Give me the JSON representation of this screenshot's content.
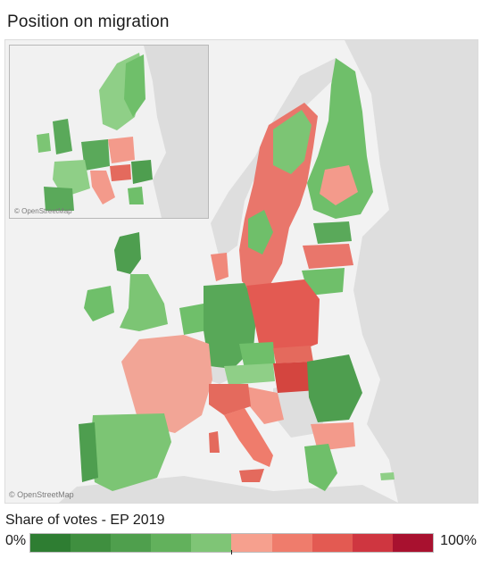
{
  "title": "Position on migration",
  "map": {
    "attribution": "© OpenStreetMap",
    "inset_attribution": "© OpenStreetMap",
    "colors": {
      "water": "#f2f2f2",
      "nonEU": "#dedede",
      "green": "#6fbf6a",
      "greenDark": "#4e9e4f",
      "greenLight": "#8fcf87",
      "red": "#e46a5d",
      "redLight": "#f39a8b",
      "redDark": "#d4453f"
    }
  },
  "legend": {
    "title": "Share of votes  - EP 2019",
    "min_label": "0%",
    "max_label": "100%",
    "colors": [
      "#2e7d32",
      "#3f8f3f",
      "#4f9f4d",
      "#62b15c",
      "#7fc576",
      "#f6a08e",
      "#ef7c6c",
      "#e35a52",
      "#cf3640",
      "#a8112f"
    ]
  }
}
